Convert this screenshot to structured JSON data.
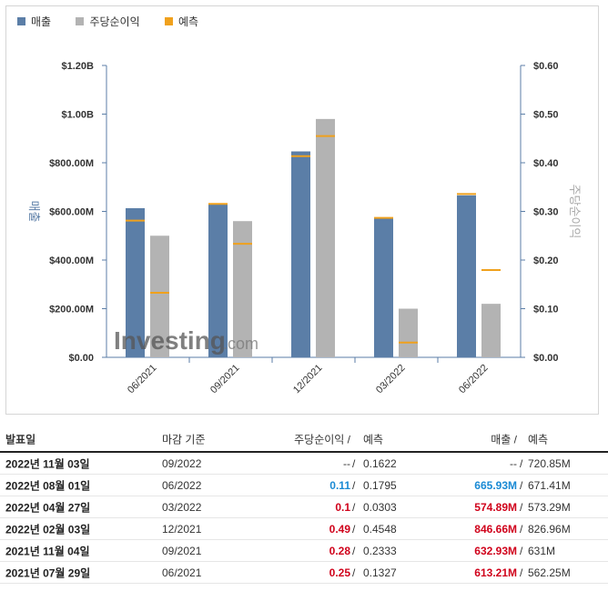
{
  "legend": {
    "revenue": "매출",
    "eps": "주당순이익",
    "forecast": "예측"
  },
  "colors": {
    "revenue": "#5b7ea7",
    "eps": "#b3b3b3",
    "forecast": "#f0a11d",
    "beat_blue": "#1a8ad4",
    "beat_red": "#d0021b"
  },
  "watermark": {
    "brand": "Investing",
    "suffix": ".com"
  },
  "chart_data": {
    "type": "bar",
    "categories": [
      "06/2021",
      "09/2021",
      "12/2021",
      "03/2022",
      "06/2022"
    ],
    "series": [
      {
        "name": "매출",
        "axis": "left",
        "values": [
          613.21,
          632.93,
          846.66,
          574.89,
          665.93
        ],
        "unit": "$M"
      },
      {
        "name": "주당순이익",
        "axis": "right",
        "values": [
          0.25,
          0.28,
          0.49,
          0.1,
          0.11
        ],
        "unit": "$"
      }
    ],
    "forecasts": {
      "revenue": [
        562.25,
        631,
        826.96,
        573.29,
        671.41
      ],
      "eps": [
        0.1327,
        0.2333,
        0.4548,
        0.0303,
        0.1795
      ]
    },
    "left_axis": {
      "label": "매출",
      "ylim": [
        0,
        1200
      ],
      "ticks": [
        0,
        200,
        400,
        600,
        800,
        1000,
        1200
      ],
      "tick_labels": [
        "$0.00",
        "$200.00M",
        "$400.00M",
        "$600.00M",
        "$800.00M",
        "$1.00B",
        "$1.20B"
      ]
    },
    "right_axis": {
      "label": "주당순이익",
      "ylim": [
        0,
        0.6
      ],
      "ticks": [
        0,
        0.1,
        0.2,
        0.3,
        0.4,
        0.5,
        0.6
      ],
      "tick_labels": [
        "$0.00",
        "$0.10",
        "$0.20",
        "$0.30",
        "$0.40",
        "$0.50",
        "$0.60"
      ]
    },
    "grid": false
  },
  "table": {
    "headers": {
      "date": "발표일",
      "period": "마감 기준",
      "eps": "주당순이익 /",
      "eps_forecast": "예측",
      "revenue": "매출 /",
      "revenue_forecast": "예측"
    },
    "rows": [
      {
        "date": "2022년 11월 03일",
        "period": "09/2022",
        "eps": "--",
        "eps_sep": "/",
        "eps_forecast": "0.1622",
        "revenue": "--",
        "rev_sep": "/",
        "revenue_forecast": "720.85M",
        "eps_class": "neutral",
        "rev_class": "neutral"
      },
      {
        "date": "2022년 08월 01일",
        "period": "06/2022",
        "eps": "0.11",
        "eps_sep": "/",
        "eps_forecast": "0.1795",
        "revenue": "665.93M",
        "rev_sep": "/",
        "revenue_forecast": "671.41M",
        "eps_class": "up-blue",
        "rev_class": "up-blue"
      },
      {
        "date": "2022년 04월 27일",
        "period": "03/2022",
        "eps": "0.1",
        "eps_sep": "/",
        "eps_forecast": "0.0303",
        "revenue": "574.89M",
        "rev_sep": "/",
        "revenue_forecast": "573.29M",
        "eps_class": "up-red",
        "rev_class": "up-red"
      },
      {
        "date": "2022년 02월 03일",
        "period": "12/2021",
        "eps": "0.49",
        "eps_sep": "/",
        "eps_forecast": "0.4548",
        "revenue": "846.66M",
        "rev_sep": "/",
        "revenue_forecast": "826.96M",
        "eps_class": "up-red",
        "rev_class": "up-red"
      },
      {
        "date": "2021년 11월 04일",
        "period": "09/2021",
        "eps": "0.28",
        "eps_sep": "/",
        "eps_forecast": "0.2333",
        "revenue": "632.93M",
        "rev_sep": "/",
        "revenue_forecast": "631M",
        "eps_class": "up-red",
        "rev_class": "up-red"
      },
      {
        "date": "2021년 07월 29일",
        "period": "06/2021",
        "eps": "0.25",
        "eps_sep": "/",
        "eps_forecast": "0.1327",
        "revenue": "613.21M",
        "rev_sep": "/",
        "revenue_forecast": "562.25M",
        "eps_class": "up-red",
        "rev_class": "up-red"
      }
    ]
  }
}
